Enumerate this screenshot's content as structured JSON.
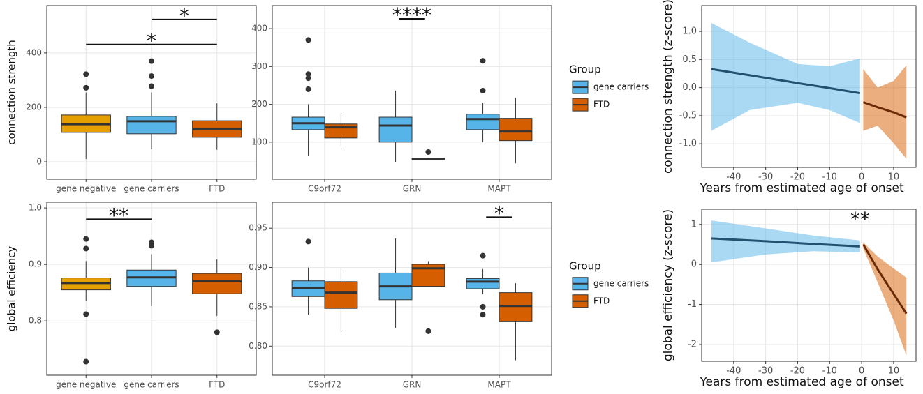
{
  "chart_data": [
    {
      "type": "box",
      "ylabel": "connection strength",
      "categories": [
        "gene negative",
        "gene carriers",
        "FTD"
      ],
      "colors": [
        "#E69F00",
        "#56B4E9",
        "#D55E00"
      ],
      "boxes": [
        {
          "low": 10,
          "q1": 108,
          "median": 138,
          "q3": 172,
          "high": 255,
          "outliers": [
            322,
            272
          ]
        },
        {
          "low": 46,
          "q1": 103,
          "median": 149,
          "q3": 167,
          "high": 255,
          "outliers": [
            370,
            315,
            278
          ]
        },
        {
          "low": 44,
          "q1": 90,
          "median": 120,
          "q3": 151,
          "high": 215,
          "outliers": []
        }
      ],
      "ylim": [
        -64,
        574
      ],
      "yticks": [
        0,
        200,
        400
      ],
      "grid": true,
      "significance": [
        {
          "label": "*",
          "x1": 1,
          "x2": 2,
          "y": 523
        },
        {
          "label": "*",
          "x1": 0,
          "x2": 2,
          "y": 431
        }
      ]
    },
    {
      "type": "box",
      "categories": [
        "C9orf72",
        "GRN",
        "MAPT"
      ],
      "legend_title": "Group",
      "series": [
        {
          "name": "gene carriers",
          "color": "#56B4E9",
          "boxes": [
            {
              "low": 63,
              "q1": 133,
              "median": 150,
              "q3": 166,
              "high": 200,
              "outliers": [
                370,
                280,
                269,
                240
              ]
            },
            {
              "low": 48,
              "q1": 100,
              "median": 144,
              "q3": 166,
              "high": 236,
              "outliers": []
            },
            {
              "low": 100,
              "q1": 133,
              "median": 161,
              "q3": 174,
              "high": 203,
              "outliers": [
                315,
                236
              ]
            }
          ]
        },
        {
          "name": "FTD",
          "color": "#D55E00",
          "boxes": [
            {
              "low": 89,
              "q1": 111,
              "median": 139,
              "q3": 148,
              "high": 177,
              "outliers": []
            },
            {
              "low": 54,
              "q1": 55,
              "median": 56,
              "q3": 57,
              "high": 59,
              "outliers": [
                74
              ]
            },
            {
              "low": 44,
              "q1": 104,
              "median": 128,
              "q3": 163,
              "high": 217,
              "outliers": []
            }
          ]
        }
      ],
      "ylim": [
        2,
        461
      ],
      "yticks": [
        100,
        200,
        300,
        400
      ],
      "grid": true,
      "significance": [
        {
          "label": "****",
          "x1": 0.85,
          "x2": 1.15,
          "y": 426
        }
      ]
    },
    {
      "type": "band-line",
      "xlabel": "Years from estimated age of onset",
      "ylabel": "connection strength (z-score)",
      "xlim": [
        -50,
        17
      ],
      "xticks": [
        -40,
        -30,
        -20,
        -10,
        0,
        10
      ],
      "ylim": [
        -1.42,
        1.46
      ],
      "yticks": [
        {
          "value": 1,
          "label": "1.0"
        },
        0.5,
        {
          "value": 0,
          "label": "0.0"
        },
        -0.5,
        {
          "value": -1,
          "label": "-1.0"
        }
      ],
      "grid": true,
      "series": [
        {
          "color": "#22506e",
          "band_color": "#56B4E9",
          "x": [
            -47,
            -35,
            -20,
            -10,
            -0.5
          ],
          "values": [
            0.33,
            0.22,
            0.08,
            -0.01,
            -0.1
          ],
          "upper": [
            1.15,
            0.8,
            0.42,
            0.38,
            0.52
          ],
          "lower": [
            -0.77,
            -0.4,
            -0.27,
            -0.4,
            -0.63
          ]
        },
        {
          "color": "#6b2a05",
          "band_color": "#D55E00",
          "x": [
            0.5,
            5,
            10,
            14
          ],
          "values": [
            -0.26,
            -0.35,
            -0.44,
            -0.53
          ],
          "upper": [
            0.33,
            0.0,
            0.12,
            0.4
          ],
          "lower": [
            -0.77,
            -0.68,
            -0.99,
            -1.27
          ]
        }
      ]
    },
    {
      "type": "box",
      "ylabel": "global efficiency",
      "categories": [
        "gene negative",
        "gene carriers",
        "FTD"
      ],
      "colors": [
        "#E69F00",
        "#56B4E9",
        "#D55E00"
      ],
      "boxes": [
        {
          "low": 0.835,
          "q1": 0.855,
          "median": 0.867,
          "q3": 0.876,
          "high": 0.906,
          "outliers": [
            0.945,
            0.928,
            0.812,
            0.728
          ]
        },
        {
          "low": 0.826,
          "q1": 0.861,
          "median": 0.877,
          "q3": 0.89,
          "high": 0.918,
          "outliers": [
            0.939,
            0.933
          ]
        },
        {
          "low": 0.809,
          "q1": 0.848,
          "median": 0.87,
          "q3": 0.884,
          "high": 0.909,
          "outliers": [
            0.78
          ]
        }
      ],
      "ylim": [
        0.704,
        1.01
      ],
      "yticks": [
        0.8,
        0.9,
        {
          "value": 1,
          "label": "1.0"
        }
      ],
      "grid": true,
      "significance": [
        {
          "label": "**",
          "x1": 0,
          "x2": 1,
          "y": 0.98
        }
      ]
    },
    {
      "type": "box",
      "categories": [
        "C9orf72",
        "GRN",
        "MAPT"
      ],
      "legend_title": "Group",
      "series": [
        {
          "name": "gene carriers",
          "color": "#56B4E9",
          "boxes": [
            {
              "low": 0.84,
              "q1": 0.863,
              "median": 0.874,
              "q3": 0.883,
              "high": 0.9,
              "outliers": [
                0.933
              ]
            },
            {
              "low": 0.823,
              "q1": 0.859,
              "median": 0.876,
              "q3": 0.893,
              "high": 0.937,
              "outliers": []
            },
            {
              "low": 0.866,
              "q1": 0.873,
              "median": 0.882,
              "q3": 0.886,
              "high": 0.898,
              "outliers": [
                0.915,
                0.85,
                0.84
              ]
            }
          ]
        },
        {
          "name": "FTD",
          "color": "#D55E00",
          "boxes": [
            {
              "low": 0.818,
              "q1": 0.848,
              "median": 0.868,
              "q3": 0.882,
              "high": 0.899,
              "outliers": []
            },
            {
              "low": 0.876,
              "q1": 0.876,
              "median": 0.899,
              "q3": 0.904,
              "high": 0.908,
              "outliers": [
                0.819
              ]
            },
            {
              "low": 0.782,
              "q1": 0.831,
              "median": 0.851,
              "q3": 0.868,
              "high": 0.88,
              "outliers": []
            }
          ]
        }
      ],
      "ylim": [
        0.763,
        0.983
      ],
      "yticks": [
        {
          "value": 0.8,
          "label": "0.80"
        },
        0.85,
        {
          "value": 0.9,
          "label": "0.90"
        },
        0.95
      ],
      "grid": true,
      "significance": [
        {
          "label": "*",
          "x1": 1.85,
          "x2": 2.15,
          "y": 0.964
        }
      ]
    },
    {
      "type": "band-line",
      "xlabel": "Years from estimated age of onset",
      "ylabel": "global efficiency (z-score)",
      "xlim": [
        -50,
        17
      ],
      "xticks": [
        -40,
        -30,
        -20,
        -10,
        0,
        10
      ],
      "ylim": [
        -2.42,
        1.38
      ],
      "yticks": [
        1,
        0,
        -1,
        -2
      ],
      "grid": true,
      "series": [
        {
          "color": "#22506e",
          "band_color": "#56B4E9",
          "x": [
            -47,
            -30,
            -15,
            -0.5
          ],
          "values": [
            0.65,
            0.58,
            0.51,
            0.45
          ],
          "upper": [
            1.1,
            0.9,
            0.72,
            0.6
          ],
          "lower": [
            0.05,
            0.25,
            0.33,
            0.3
          ]
        },
        {
          "color": "#6b2a05",
          "band_color": "#D55E00",
          "x": [
            0.5,
            5,
            10,
            14
          ],
          "values": [
            0.5,
            -0.12,
            -0.74,
            -1.23
          ],
          "upper": [
            0.55,
            0.2,
            -0.1,
            -0.33
          ],
          "lower": [
            0.4,
            -0.45,
            -1.4,
            -2.28
          ]
        }
      ],
      "annotations": [
        {
          "text": "**",
          "x": -0.5,
          "y": 1.1
        }
      ]
    }
  ]
}
